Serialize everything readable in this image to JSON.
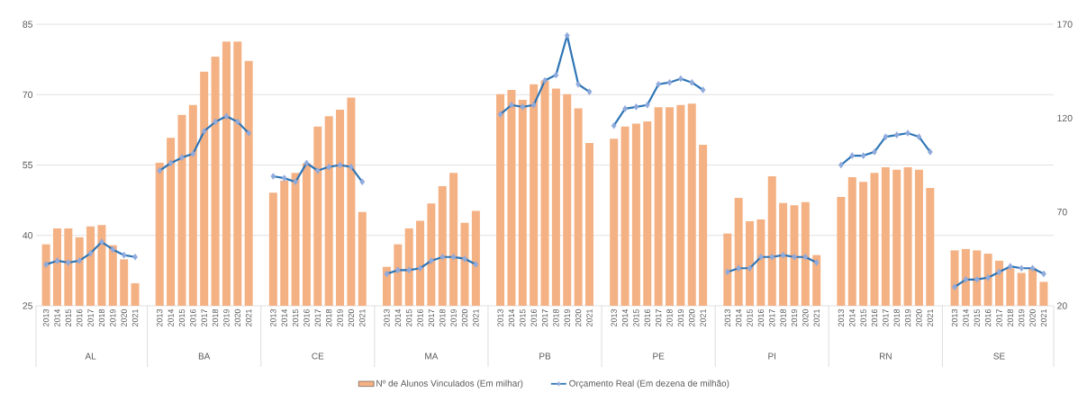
{
  "chart_data": {
    "type": "bar",
    "categories": [
      "2013",
      "2014",
      "2015",
      "2016",
      "2017",
      "2018",
      "2019",
      "2020",
      "2021",
      "2013",
      "2014",
      "2015",
      "2016",
      "2017",
      "2018",
      "2019",
      "2020",
      "2021",
      "2013",
      "2014",
      "2015",
      "2016",
      "2017",
      "2018",
      "2019",
      "2020",
      "2021",
      "2013",
      "2014",
      "2015",
      "2016",
      "2017",
      "2018",
      "2019",
      "2020",
      "2021",
      "2013",
      "2014",
      "2015",
      "2016",
      "2017",
      "2018",
      "2019",
      "2020",
      "2021",
      "2013",
      "2014",
      "2015",
      "2016",
      "2017",
      "2018",
      "2019",
      "2020",
      "2021",
      "2013",
      "2014",
      "2015",
      "2016",
      "2017",
      "2018",
      "2019",
      "2020",
      "2021",
      "2013",
      "2014",
      "2015",
      "2016",
      "2017",
      "2018",
      "2019",
      "2020",
      "2021",
      "2013",
      "2014",
      "2015",
      "2016",
      "2017",
      "2018",
      "2019",
      "2020",
      "2021"
    ],
    "annotations": [
      "AL",
      "BA",
      "CE",
      "MA",
      "PB",
      "PE",
      "PI",
      "RN",
      "SE"
    ],
    "series": [
      {
        "name": "Nº de Alunos Vinculados (Em milhar)",
        "color": "#f4b183",
        "values": [
          38.1,
          41.5,
          41.5,
          39.6,
          41.9,
          42.2,
          37.9,
          34.9,
          29.8,
          55.5,
          60.8,
          65.7,
          67.8,
          74.9,
          78.1,
          81.3,
          81.3,
          77.2,
          49.1,
          51.7,
          53.3,
          55.4,
          63.2,
          65.4,
          66.8,
          69.4,
          45,
          33.3,
          38.1,
          41.5,
          43.1,
          46.8,
          50.5,
          53.3,
          42.7,
          45.2,
          70.1,
          71,
          68.9,
          72.2,
          73,
          71.3,
          70.1,
          67.1,
          59.7,
          60.6,
          63.2,
          63.8,
          64.3,
          67.3,
          67.3,
          67.8,
          68.1,
          59.3,
          40.4,
          48,
          43,
          43.4,
          52.6,
          46.9,
          46.4,
          47.1,
          35.8,
          48.2,
          52.4,
          51.4,
          53.3,
          54.5,
          54,
          54.5,
          54,
          50.1,
          36.8,
          37.1,
          36.8,
          36.1,
          34.6,
          33,
          32,
          33,
          30.1
        ]
      },
      {
        "name": "Orçamento Real (Em dezena de milhão)",
        "type": "line",
        "axis": "y2",
        "marker": "diamond",
        "color": "#2e75b6",
        "values": [
          42,
          44,
          43,
          44,
          48,
          54,
          50,
          47,
          46,
          92,
          96,
          99,
          101,
          113,
          118,
          121,
          118,
          112,
          89,
          88,
          86,
          96,
          92,
          94,
          95,
          94,
          86,
          37,
          39,
          39,
          40,
          44,
          46,
          46,
          45,
          42,
          122,
          127,
          126,
          127,
          140,
          143,
          164,
          138,
          134,
          116,
          125,
          126,
          127,
          138,
          139,
          141,
          139,
          135,
          38,
          40,
          40,
          46,
          46,
          47,
          46,
          46,
          43,
          95,
          100,
          100,
          102,
          110,
          111,
          112,
          110,
          102,
          30,
          34,
          34,
          35,
          38,
          41,
          40,
          40,
          37
        ]
      }
    ],
    "ylim": [
      25,
      85
    ],
    "yticks": [
      25,
      40,
      55,
      70,
      85
    ],
    "y2lim": [
      20,
      170
    ],
    "y2ticks": [
      20,
      70,
      120,
      170
    ],
    "grid": "y",
    "legend": "bottom"
  }
}
